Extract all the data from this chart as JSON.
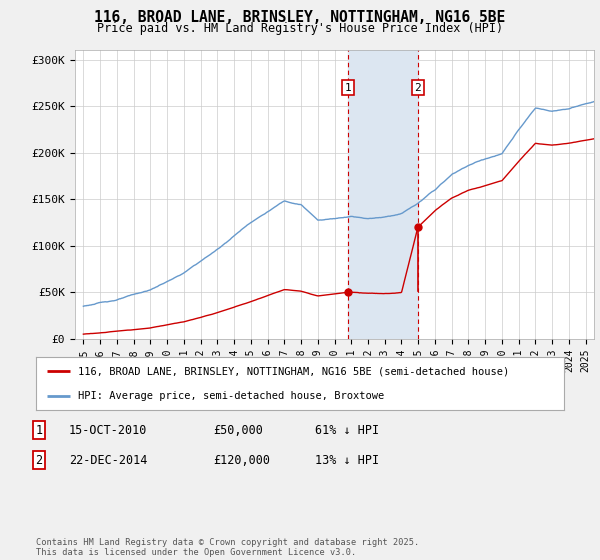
{
  "title": "116, BROAD LANE, BRINSLEY, NOTTINGHAM, NG16 5BE",
  "subtitle": "Price paid vs. HM Land Registry's House Price Index (HPI)",
  "background_color": "#f0f0f0",
  "plot_bg_color": "#ffffff",
  "ylabel_ticks": [
    "£0",
    "£50K",
    "£100K",
    "£150K",
    "£200K",
    "£250K",
    "£300K"
  ],
  "ytick_vals": [
    0,
    50000,
    100000,
    150000,
    200000,
    250000,
    300000
  ],
  "ylim": [
    0,
    310000
  ],
  "xlim_start": 1994.5,
  "xlim_end": 2025.5,
  "sale1_date_x": 2010.79,
  "sale1_price": 50000,
  "sale2_date_x": 2014.98,
  "sale2_price": 120000,
  "sale1_label": "1",
  "sale2_label": "2",
  "vline1_x": 2010.79,
  "vline2_x": 2014.98,
  "highlight_fill": "#dce6f1",
  "legend_line1_color": "#cc0000",
  "legend_line2_color": "#6699cc",
  "legend_label1": "116, BROAD LANE, BRINSLEY, NOTTINGHAM, NG16 5BE (semi-detached house)",
  "legend_label2": "HPI: Average price, semi-detached house, Broxtowe",
  "table_row1": [
    "1",
    "15-OCT-2010",
    "£50,000",
    "61% ↓ HPI"
  ],
  "table_row2": [
    "2",
    "22-DEC-2014",
    "£120,000",
    "13% ↓ HPI"
  ],
  "footer": "Contains HM Land Registry data © Crown copyright and database right 2025.\nThis data is licensed under the Open Government Licence v3.0.",
  "hpi_knots_x": [
    1995,
    1997,
    1999,
    2001,
    2003,
    2005,
    2007,
    2008,
    2009,
    2010,
    2011,
    2012,
    2013,
    2014,
    2015,
    2016,
    2017,
    2018,
    2019,
    2020,
    2021,
    2022,
    2023,
    2024,
    2025.5
  ],
  "hpi_knots_y": [
    35000,
    42000,
    52000,
    70000,
    95000,
    125000,
    148000,
    145000,
    128000,
    130000,
    133000,
    131000,
    133000,
    137000,
    148000,
    162000,
    178000,
    188000,
    195000,
    200000,
    225000,
    248000,
    245000,
    248000,
    255000
  ],
  "prop_knots_x": [
    1995,
    1997,
    1999,
    2001,
    2003,
    2005,
    2007,
    2008,
    2009,
    2010.79,
    2011,
    2012,
    2013,
    2014.0,
    2014.98,
    2016,
    2017,
    2018,
    2019,
    2020,
    2021,
    2022,
    2023,
    2024,
    2025.5
  ],
  "prop_knots_y": [
    5000,
    8000,
    12000,
    18000,
    28000,
    40000,
    53000,
    51000,
    46000,
    50000,
    50000,
    49000,
    49000,
    50000,
    120000,
    138000,
    152000,
    160000,
    165000,
    170000,
    191000,
    210000,
    208000,
    210000,
    215000
  ]
}
